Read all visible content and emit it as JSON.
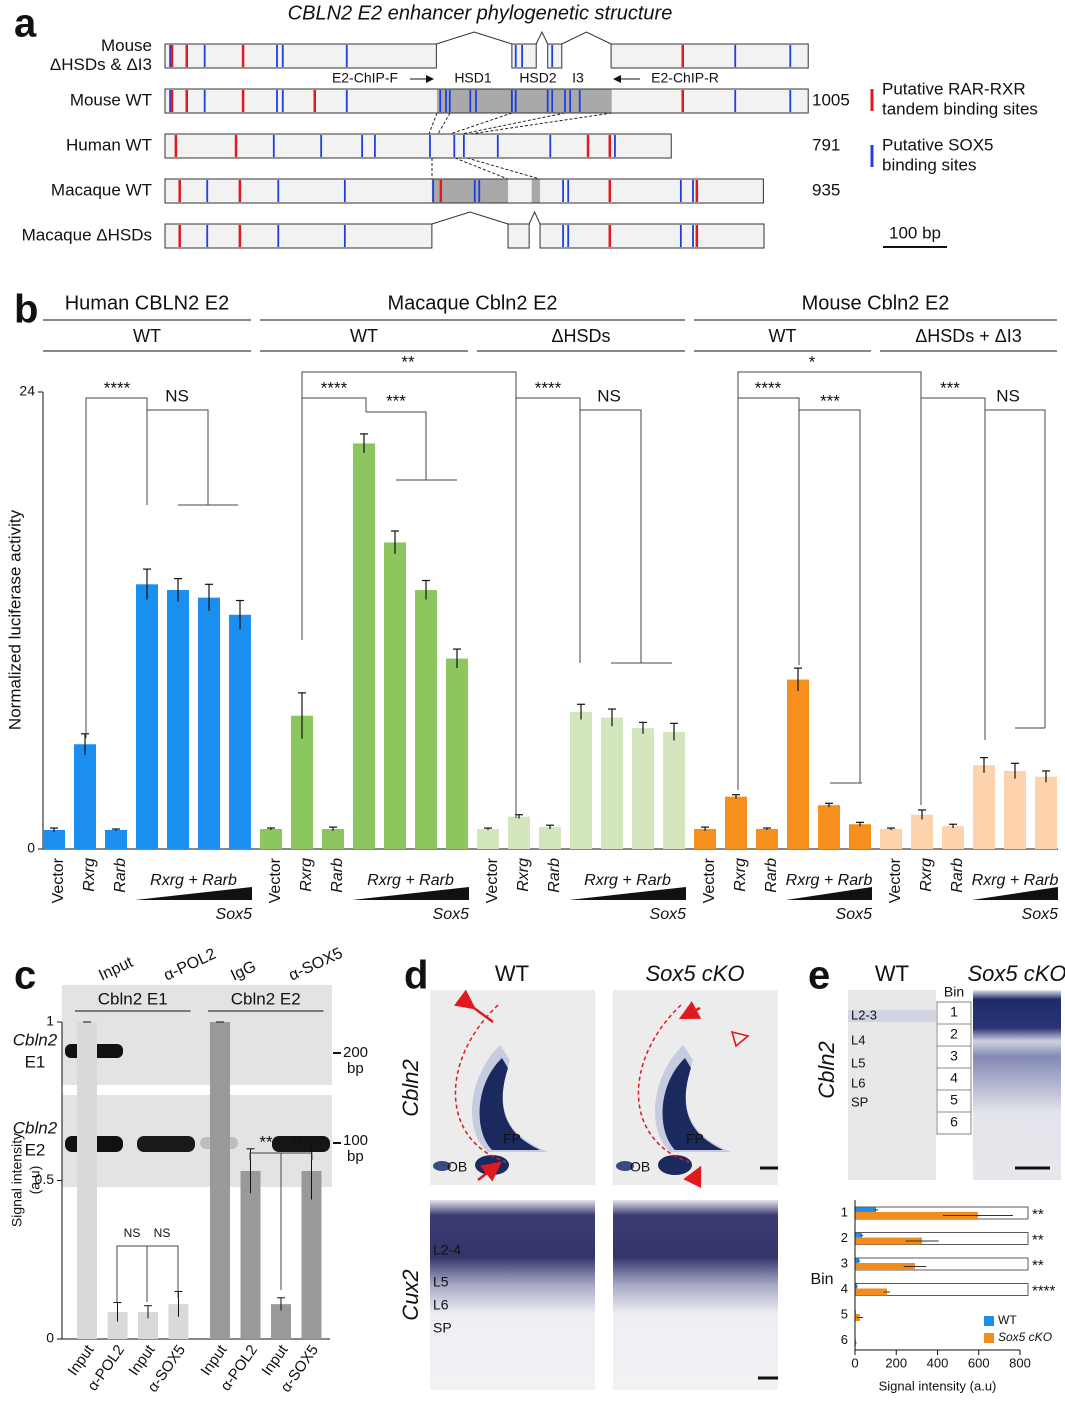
{
  "panel_labels": [
    "a",
    "b",
    "c",
    "d",
    "e"
  ],
  "panel_a": {
    "title": "CBLN2 E2 enhancer phylogenetic structure",
    "tracks": [
      {
        "label": [
          "Mouse",
          "ΔHSDs & ΔI3"
        ],
        "segments": [
          [
            0,
            424
          ],
          [
            542,
            580
          ],
          [
            598,
            620
          ],
          [
            697,
            1005
          ]
        ],
        "rar": [
          11,
          34,
          122,
          809
        ],
        "sox5": [
          8,
          62,
          175,
          184,
          284,
          548,
          558,
          605,
          891,
          977
        ]
      },
      {
        "label": [
          "Mouse WT"
        ],
        "length": 1005,
        "shaded": [
          [
            425,
            698
          ]
        ],
        "rar": [
          11,
          34,
          122,
          234,
          809
        ],
        "sox5": [
          8,
          62,
          175,
          184,
          284,
          430,
          439,
          445,
          477,
          486,
          542,
          548,
          598,
          605,
          625,
          633,
          648,
          891,
          977
        ]
      },
      {
        "label": [
          "Human WT"
        ],
        "length": 791,
        "rar": [
          17,
          111,
          661,
          695
        ],
        "sox5": [
          170,
          244,
          308,
          328,
          414,
          452,
          467,
          520,
          602,
          703
        ]
      },
      {
        "label": [
          "Macaque WT"
        ],
        "length": 935,
        "shaded": [
          [
            417,
            536
          ],
          [
            573,
            586
          ]
        ],
        "rar": [
          23,
          117,
          431,
          695,
          831
        ],
        "sox5": [
          66,
          177,
          281,
          419,
          484,
          491,
          622,
          630,
          806,
          825
        ]
      },
      {
        "label": [
          "Macaque ΔHSDs"
        ],
        "segments": [
          [
            0,
            417
          ],
          [
            536,
            569
          ],
          [
            586,
            936
          ]
        ],
        "rar": [
          23,
          117,
          695,
          831
        ],
        "sox5": [
          66,
          177,
          281,
          622,
          630,
          806,
          825
        ]
      }
    ],
    "annotations": [
      "E2-ChIP-F",
      "HSD1",
      "HSD2",
      "I3",
      "E2-ChIP-R"
    ],
    "legend": [
      {
        "label": [
          "Putative RAR-RXR",
          "tandem binding sites"
        ],
        "color": "#e0191e"
      },
      {
        "label": [
          "Putative SOX5",
          "binding sites"
        ],
        "color": "#1d3fe0"
      }
    ],
    "scale_bar": {
      "label": "100 bp",
      "length": 100
    }
  },
  "panel_c_gel": {
    "lanes": [
      "Input",
      "α-POL2",
      "IgG",
      "α-SOX5"
    ],
    "rows": [
      {
        "label": [
          "Cbln2",
          "E1"
        ],
        "marker": [
          "200",
          "bp"
        ]
      },
      {
        "label": [
          "Cbln2",
          "E2"
        ],
        "marker": [
          "100",
          "bp"
        ]
      }
    ]
  },
  "panel_d": {
    "columns": [
      "WT",
      "Sox5 cKO"
    ],
    "rows": [
      "Cbln2",
      "Cux2"
    ],
    "region_labels": [
      "FP",
      "OB",
      "FP",
      "OB"
    ],
    "layers": [
      "L2-4",
      "L5",
      "L6",
      "SP"
    ]
  },
  "panel_e": {
    "columns": [
      "WT",
      "Sox5 cKO"
    ],
    "row": "Cbln2",
    "bin_header": "Bin",
    "bins": [
      "1",
      "2",
      "3",
      "4",
      "5",
      "6"
    ],
    "layers": [
      "L2-3",
      "L4",
      "L5",
      "L6",
      "SP"
    ]
  },
  "chart_data": [
    {
      "type": "bar",
      "y_label": "Normalized luciferase activity",
      "ylim": [
        0,
        24
      ],
      "yticks": [
        0,
        24
      ],
      "species": [
        {
          "name": "Human CBLN2 E2",
          "conditions": [
            {
              "name": "WT",
              "color": "#1a8ff0",
              "categories": [
                "Vector",
                "Rxrg",
                "Rarb",
                null,
                null,
                null,
                null
              ],
              "values": [
                1.0,
                5.5,
                1.0,
                13.9,
                13.6,
                13.2,
                12.3
              ],
              "errors": [
                0.1,
                0.55,
                0.05,
                0.8,
                0.6,
                0.7,
                0.75
              ],
              "combo_label": "Rxrg + Rarb",
              "titration_label": "Sox5"
            }
          ]
        },
        {
          "name": "Macaque Cbln2 E2",
          "conditions": [
            {
              "name": "WT",
              "color": "#8dc65f",
              "categories": [
                "Vector",
                "Rxrg",
                "Rarb",
                null,
                null,
                null,
                null
              ],
              "values": [
                1.05,
                7.0,
                1.05,
                21.3,
                16.1,
                13.6,
                10.0
              ],
              "errors": [
                0.05,
                1.2,
                0.1,
                0.5,
                0.6,
                0.5,
                0.5
              ],
              "combo_label": "Rxrg + Rarb",
              "titration_label": "Sox5"
            },
            {
              "name": "ΔHSDs",
              "color": "#d3e6bd",
              "categories": [
                "Vector",
                "Rxrg",
                "Rarb",
                null,
                null,
                null,
                null
              ],
              "values": [
                1.05,
                1.7,
                1.15,
                7.2,
                6.9,
                6.35,
                6.15
              ],
              "errors": [
                0.05,
                0.1,
                0.1,
                0.4,
                0.45,
                0.3,
                0.45
              ],
              "combo_label": "Rxrg + Rarb",
              "titration_label": "Sox5"
            }
          ]
        },
        {
          "name": "Mouse Cbln2 E2",
          "conditions": [
            {
              "name": "WT",
              "color": "#f78f1e",
              "categories": [
                "Vector",
                "Rxrg",
                "Rarb",
                null,
                null,
                null
              ],
              "values": [
                1.05,
                2.75,
                1.05,
                8.9,
                2.3,
                1.3
              ],
              "errors": [
                0.1,
                0.1,
                0.05,
                0.6,
                0.1,
                0.1
              ],
              "combo_label": "Rxrg + Rarb",
              "titration_label": "Sox5"
            },
            {
              "name": "ΔHSDs + ΔI3",
              "color": "#fcd3ad",
              "categories": [
                "Vector",
                "Rxrg",
                "Rarb",
                null,
                null,
                null
              ],
              "values": [
                1.05,
                1.8,
                1.2,
                4.4,
                4.1,
                3.8
              ],
              "errors": [
                0.05,
                0.25,
                0.1,
                0.4,
                0.4,
                0.3
              ],
              "combo_label": "Rxrg + Rarb",
              "titration_label": "Sox5"
            }
          ]
        }
      ],
      "significance": [
        "****",
        "NS",
        "****",
        "***",
        "**",
        "****",
        "NS",
        "****",
        "***",
        "*",
        "***",
        "NS"
      ]
    },
    {
      "type": "bar",
      "y_label": [
        "Signal intensity",
        "(a.u)"
      ],
      "ylim": [
        0,
        1
      ],
      "yticks": [
        0,
        0.5,
        1
      ],
      "panels": [
        {
          "title": "Cbln2 E1",
          "color": "#d9d9d9",
          "categories": [
            "Input",
            "α-POL2",
            "Input",
            "α-SOX5"
          ],
          "values": [
            1,
            0.085,
            0.085,
            0.11
          ],
          "errors": [
            0,
            0.03,
            0.02,
            0.04
          ]
        },
        {
          "title": "Cbln2 E2",
          "color": "#999999",
          "categories": [
            "Input",
            "α-POL2",
            "Input",
            "α-SOX5"
          ],
          "values": [
            1,
            0.53,
            0.11,
            0.53
          ],
          "errors": [
            0,
            0.07,
            0.02,
            0.09
          ]
        }
      ],
      "significance": [
        "NS",
        "NS",
        "**",
        "**"
      ]
    },
    {
      "type": "horizontal-bar",
      "y_label": "Bin",
      "x_label": "Signal intensity (a.u)",
      "categories": [
        1,
        2,
        3,
        4,
        5,
        6
      ],
      "series": [
        {
          "name": "WT",
          "color": "#1a8ff0",
          "values": [
            102,
            34,
            20,
            10,
            3,
            2
          ],
          "errors": [
            10,
            5,
            5,
            3,
            2,
            1
          ]
        },
        {
          "name": "Sox5 cKO",
          "color": "#f28c1c",
          "values": [
            596,
            325,
            291,
            155,
            24,
            5
          ],
          "errors": [
            170,
            80,
            55,
            15,
            15,
            3
          ]
        }
      ],
      "xlim": [
        0,
        800
      ],
      "xticks": [
        0,
        200,
        400,
        600,
        800
      ],
      "significance": [
        "**",
        "**",
        "**",
        "****"
      ]
    }
  ]
}
